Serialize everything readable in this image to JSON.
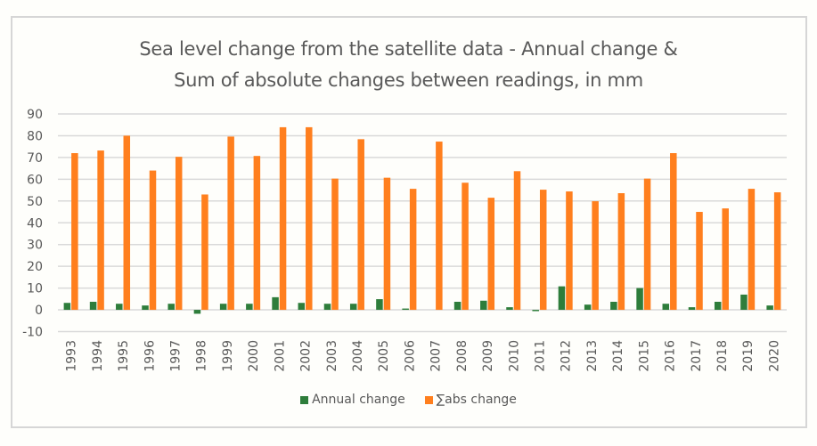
{
  "chart_data": {
    "type": "bar",
    "title_lines": [
      "Sea level change from the satellite data - Annual change &",
      "Sum of absolute changes between readings, in mm"
    ],
    "xlabel": "",
    "ylabel": "",
    "ylim": [
      -10,
      90
    ],
    "yticks": [
      90,
      80,
      70,
      60,
      50,
      40,
      30,
      20,
      10,
      0,
      -10
    ],
    "grid": true,
    "legend_position": "bottom",
    "categories": [
      "1993",
      "1994",
      "1995",
      "1996",
      "1997",
      "1998",
      "1999",
      "2000",
      "2001",
      "2002",
      "2003",
      "2004",
      "2005",
      "2006",
      "2007",
      "2008",
      "2009",
      "2010",
      "2011",
      "2012",
      "2013",
      "2014",
      "2015",
      "2016",
      "2017",
      "2018",
      "2019",
      "2020"
    ],
    "series": [
      {
        "name": "Annual change",
        "color": "#2e7d3b",
        "values": [
          3.2,
          3.7,
          2.8,
          2.0,
          2.8,
          -1.8,
          2.8,
          2.8,
          5.8,
          3.2,
          2.8,
          2.8,
          4.9,
          0.6,
          0.0,
          3.7,
          4.2,
          1.2,
          -0.6,
          10.8,
          2.4,
          3.7,
          10.0,
          2.8,
          1.2,
          3.7,
          7.0,
          2.0
        ]
      },
      {
        "name": "∑abs change",
        "color": "#ff7f1e",
        "values": [
          72.0,
          73.2,
          80.0,
          64.0,
          70.3,
          53.0,
          79.6,
          70.7,
          83.9,
          83.9,
          60.3,
          78.4,
          60.7,
          55.6,
          77.3,
          58.4,
          51.5,
          63.7,
          55.2,
          54.4,
          49.9,
          53.6,
          60.3,
          72.0,
          45.0,
          46.6,
          55.6,
          54.0
        ]
      }
    ]
  }
}
